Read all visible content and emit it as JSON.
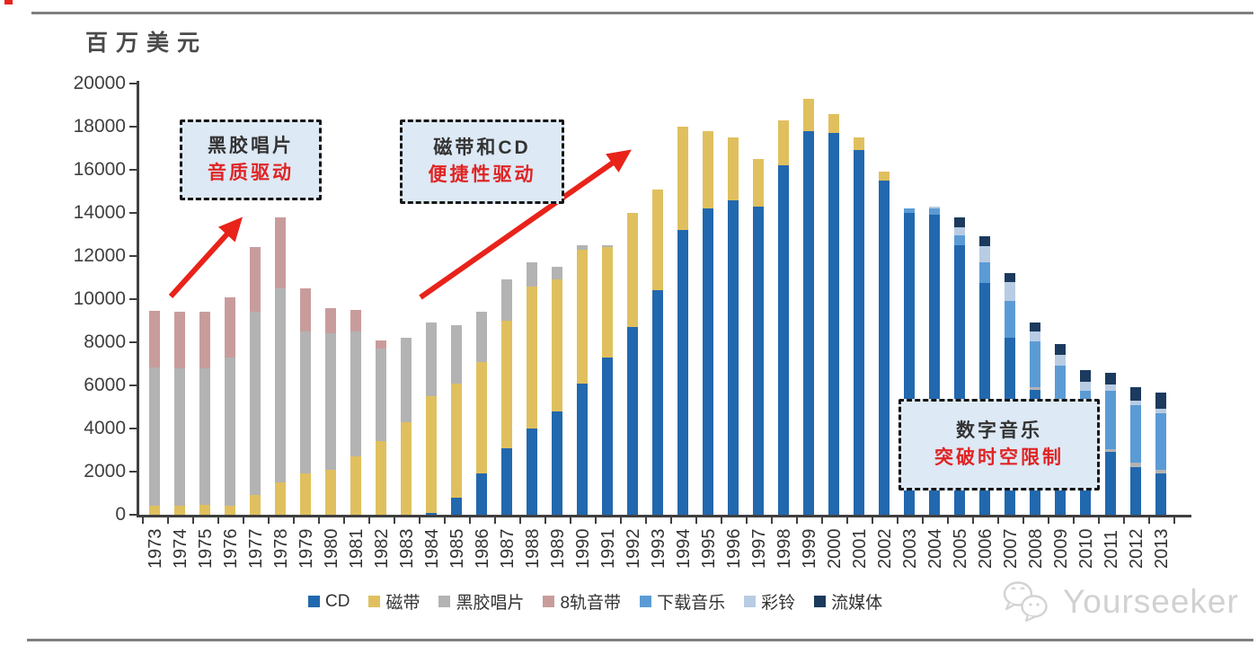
{
  "header": {
    "unit_label": "百万美元"
  },
  "palette": {
    "accent_red": "#e8231a",
    "axis_color": "#3f3f3f",
    "annotation_fill": "#dde9f5",
    "rule_color": "#7f7f7f",
    "watermark_color": "#c9c9c9"
  },
  "chart_data": {
    "type": "bar",
    "stacked": true,
    "title": "",
    "ylabel": "百万美元",
    "xlabel": "",
    "ylim": [
      0,
      20000
    ],
    "ytick_step": 2000,
    "grid": false,
    "legend_position": "bottom",
    "categories": [
      1973,
      1974,
      1975,
      1976,
      1977,
      1978,
      1979,
      1980,
      1981,
      1982,
      1983,
      1984,
      1985,
      1986,
      1987,
      1988,
      1989,
      1990,
      1991,
      1992,
      1993,
      1994,
      1995,
      1996,
      1997,
      1998,
      1999,
      2000,
      2001,
      2002,
      2003,
      2004,
      2005,
      2006,
      2007,
      2008,
      2009,
      2010,
      2011,
      2012,
      2013
    ],
    "series": [
      {
        "name": "CD",
        "color": "#2268ae",
        "values": [
          0,
          0,
          0,
          0,
          0,
          0,
          0,
          0,
          0,
          0,
          0,
          100,
          800,
          1900,
          3100,
          4000,
          4800,
          6100,
          7300,
          8700,
          10400,
          13200,
          14200,
          14600,
          14300,
          16200,
          17800,
          17700,
          16900,
          15500,
          14000,
          13900,
          12500,
          10750,
          8200,
          5800,
          4700,
          3400,
          2900,
          2200,
          1900
        ]
      },
      {
        "name": "磁带",
        "color": "#e0c05e",
        "values": [
          400,
          400,
          450,
          400,
          900,
          1500,
          1900,
          2100,
          2700,
          3400,
          4300,
          5400,
          5300,
          5200,
          5900,
          6600,
          6100,
          6200,
          5100,
          5300,
          4700,
          4800,
          3600,
          2900,
          2200,
          2100,
          1500,
          900,
          600,
          400,
          0,
          0,
          0,
          0,
          0,
          0,
          0,
          0,
          0,
          0,
          0
        ]
      },
      {
        "name": "黑胶唱片",
        "color": "#b3b3b3",
        "values": [
          6450,
          6400,
          6350,
          6900,
          8500,
          9000,
          6600,
          6300,
          5800,
          4300,
          3900,
          3400,
          2700,
          2300,
          1900,
          1100,
          600,
          200,
          100,
          0,
          0,
          0,
          0,
          0,
          0,
          0,
          0,
          0,
          0,
          0,
          0,
          0,
          0,
          0,
          0,
          100,
          100,
          100,
          150,
          200,
          200
        ]
      },
      {
        "name": "8轨音带",
        "color": "#c99c9c",
        "values": [
          2600,
          2600,
          2600,
          2800,
          3000,
          3300,
          2000,
          1200,
          1000,
          400,
          0,
          0,
          0,
          0,
          0,
          0,
          0,
          0,
          0,
          0,
          0,
          0,
          0,
          0,
          0,
          0,
          0,
          0,
          0,
          0,
          0,
          0,
          0,
          0,
          0,
          0,
          0,
          0,
          0,
          0,
          0
        ]
      },
      {
        "name": "下载音乐",
        "color": "#5b9bd5",
        "values": [
          0,
          0,
          0,
          0,
          0,
          0,
          0,
          0,
          0,
          0,
          0,
          0,
          0,
          0,
          0,
          0,
          0,
          0,
          0,
          0,
          0,
          0,
          0,
          0,
          0,
          0,
          0,
          0,
          0,
          0,
          200,
          300,
          450,
          950,
          1700,
          2150,
          2100,
          2250,
          2700,
          2700,
          2600
        ]
      },
      {
        "name": "彩铃",
        "color": "#b8cce4",
        "values": [
          0,
          0,
          0,
          0,
          0,
          0,
          0,
          0,
          0,
          0,
          0,
          0,
          0,
          0,
          0,
          0,
          0,
          0,
          0,
          0,
          0,
          0,
          0,
          0,
          0,
          0,
          0,
          0,
          0,
          0,
          0,
          100,
          400,
          750,
          900,
          450,
          500,
          400,
          300,
          200,
          200
        ]
      },
      {
        "name": "流媒体",
        "color": "#1b3a5e",
        "values": [
          0,
          0,
          0,
          0,
          0,
          0,
          0,
          0,
          0,
          0,
          0,
          0,
          0,
          0,
          0,
          0,
          0,
          0,
          0,
          0,
          0,
          0,
          0,
          0,
          0,
          0,
          0,
          0,
          0,
          0,
          0,
          0,
          450,
          450,
          400,
          400,
          500,
          550,
          550,
          600,
          750
        ]
      }
    ]
  },
  "annotations": [
    {
      "line1": "黑胶唱片",
      "line2": "音质驱动"
    },
    {
      "line1": "磁带和CD",
      "line2": "便捷性驱动"
    },
    {
      "line1": "数字音乐",
      "line2": "突破时空限制"
    }
  ],
  "watermark": {
    "text": "Yourseeker"
  }
}
